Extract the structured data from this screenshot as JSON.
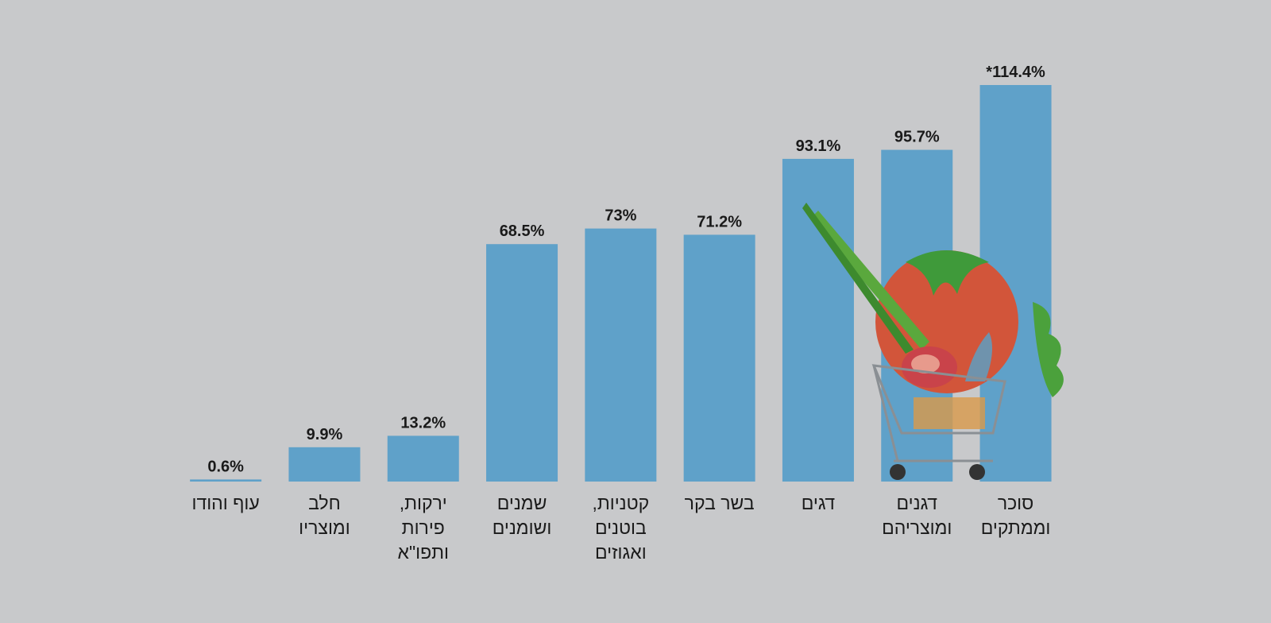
{
  "chart_data": {
    "type": "bar",
    "categories": [
      "עוף והודו",
      "חלב\nומוצריו",
      "ירקות,\nפירות\nותפו\"א",
      "שמנים\nושומנים",
      "קטניות,\nבוטנים\nואגוזים",
      "בשר בקר",
      "דגים",
      "דגנים\nומוצריהם",
      "סוכר\nוממתקים"
    ],
    "values": [
      0.6,
      9.9,
      13.2,
      68.5,
      73,
      71.2,
      93.1,
      95.7,
      114.4
    ],
    "value_labels": [
      "0.6%",
      "9.9%",
      "13.2%",
      "68.5%",
      "73%",
      "71.2%",
      "93.1%",
      "95.7%",
      "*114.4%"
    ],
    "color": "#5fa1c9"
  }
}
